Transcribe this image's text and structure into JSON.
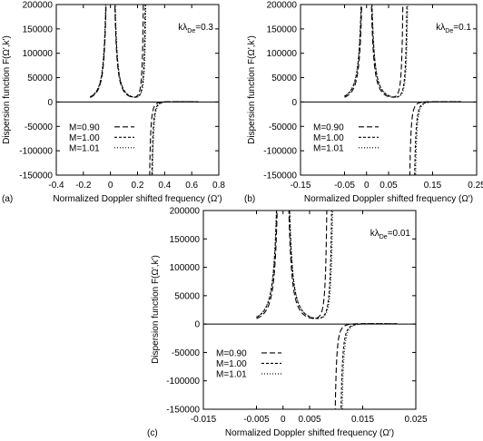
{
  "chart_data": [
    {
      "type": "line",
      "panel_label": "(a)",
      "xlabel": "Normalized Doppler shifted frequency (Ω')",
      "ylabel": "Dispersion function F(Ω',k')",
      "annotation": {
        "k": "kλ",
        "sub": "De",
        "value": "=0.3"
      },
      "xlim": [
        -0.4,
        0.8
      ],
      "ylim": [
        -150000,
        200000
      ],
      "xticks": [
        "-0.4",
        "-0.2",
        "0",
        "0.2",
        "0.4",
        "0.6",
        "0.8"
      ],
      "xtick_values": [
        -0.4,
        -0.2,
        0,
        0.2,
        0.4,
        0.6,
        0.8
      ],
      "yticks": [
        "200000",
        "150000",
        "100000",
        "50000",
        "0",
        "-50000",
        "-100000",
        "-150000"
      ],
      "ytick_values": [
        200000,
        150000,
        100000,
        50000,
        0,
        -50000,
        -100000,
        -150000
      ],
      "legend": [
        "M=0.90",
        "M=1.00",
        "M=1.01"
      ],
      "legend_position": "lower-left",
      "pole_x": 0,
      "resonance": {
        "0.90": 0.265,
        "1.00": 0.28,
        "1.01": 0.285
      },
      "left_end": -0.15,
      "right_end": 0.65,
      "scale": 1.7
    },
    {
      "type": "line",
      "panel_label": "(b)",
      "xlabel": "Normalized Doppler shifted frequency (Ω')",
      "ylabel": "Dispersion function F(Ω',k')",
      "annotation": {
        "k": "kλ",
        "sub": "De",
        "value": "=0.1"
      },
      "xlim": [
        -0.15,
        0.25
      ],
      "ylim": [
        -150000,
        200000
      ],
      "xticks": [
        "-0.15",
        "-0.05",
        "0",
        "0.05",
        "0.15",
        "0.25"
      ],
      "xtick_values": [
        -0.15,
        -0.05,
        0,
        0.05,
        0.15,
        0.25
      ],
      "yticks": [
        "200000",
        "150000",
        "100000",
        "50000",
        "0",
        "-50000",
        "-100000",
        "-150000"
      ],
      "ytick_values": [
        200000,
        150000,
        100000,
        50000,
        0,
        -50000,
        -100000,
        -150000
      ],
      "legend": [
        "M=0.90",
        "M=1.00",
        "M=1.01"
      ],
      "legend_position": "lower-left",
      "pole_x": 0,
      "resonance": {
        "0.90": 0.09,
        "1.00": 0.1,
        "1.01": 0.102
      },
      "left_end": -0.05,
      "right_end": 0.215,
      "scale": 0.18
    },
    {
      "type": "line",
      "panel_label": "(c)",
      "xlabel": "Normalized Doppler shifted frequency (Ω')",
      "ylabel": "Dispersion function F(Ω',k')",
      "annotation": {
        "k": "kλ",
        "sub": "De",
        "value": "=0.01"
      },
      "xlim": [
        -0.015,
        0.025
      ],
      "ylim": [
        -150000,
        200000
      ],
      "xticks": [
        "-0.015",
        "-0.005",
        "0",
        "0.005",
        "0.015",
        "0.025"
      ],
      "xtick_values": [
        -0.015,
        -0.005,
        0,
        0.005,
        0.015,
        0.025
      ],
      "yticks": [
        "200000",
        "150000",
        "100000",
        "50000",
        "0",
        "-50000",
        "-100000",
        "-150000"
      ],
      "ytick_values": [
        200000,
        150000,
        100000,
        50000,
        0,
        -50000,
        -100000,
        -150000
      ],
      "legend": [
        "M=0.90",
        "M=1.00",
        "M=1.01"
      ],
      "legend_position": "lower-left",
      "pole_x": 0,
      "resonance": {
        "0.90": 0.009,
        "1.00": 0.01,
        "1.01": 0.0102
      },
      "left_end": -0.005,
      "right_end": 0.0215,
      "scale": 0.0018
    }
  ]
}
